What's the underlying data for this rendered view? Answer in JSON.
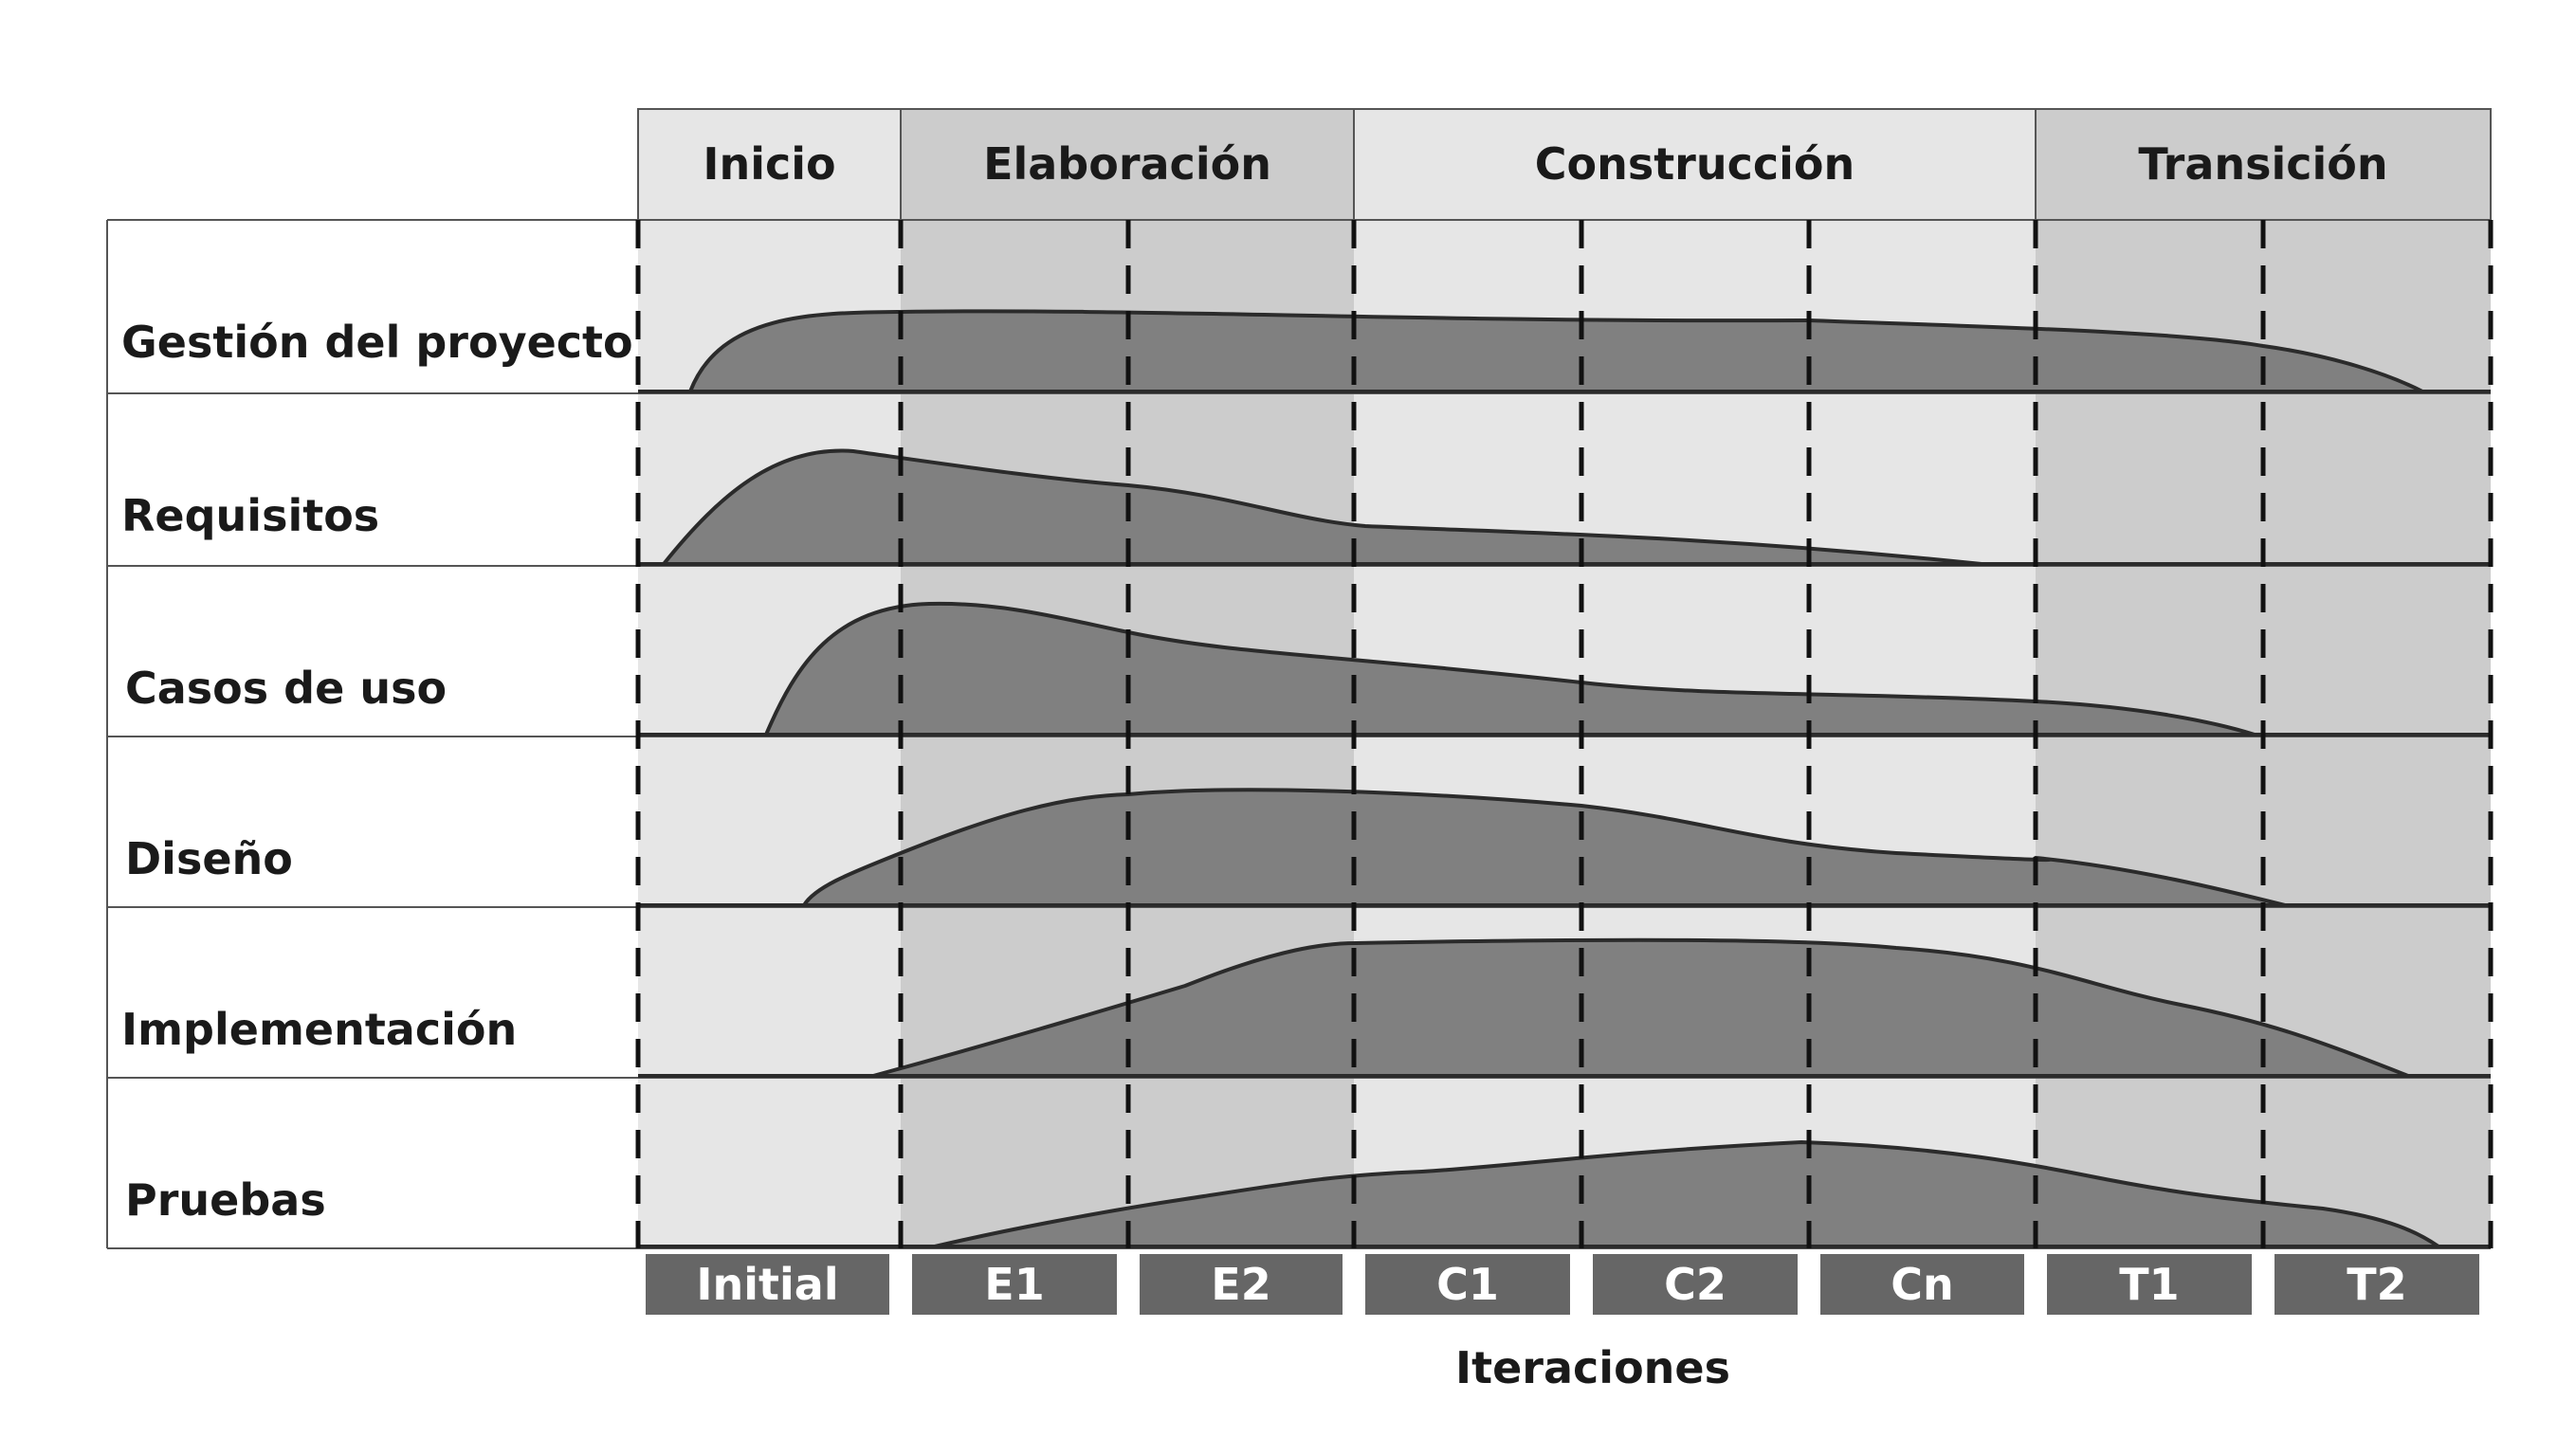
{
  "phases": [
    {
      "label": "Inicio",
      "shade": "light"
    },
    {
      "label": "Elaboración",
      "shade": "dark"
    },
    {
      "label": "Construcción",
      "shade": "light"
    },
    {
      "label": "Transición",
      "shade": "dark"
    }
  ],
  "disciplines": [
    {
      "label": "Gestión del proyecto"
    },
    {
      "label": "Requisitos"
    },
    {
      "label": "Casos de uso"
    },
    {
      "label": "Diseño"
    },
    {
      "label": "Implementación"
    },
    {
      "label": "Pruebas"
    }
  ],
  "iterations": [
    "Initial",
    "E1",
    "E2",
    "C1",
    "C2",
    "Cn",
    "T1",
    "T2"
  ],
  "iterations_axis_label": "Iteraciones",
  "colors": {
    "light_band": "#e6e6e6",
    "dark_band": "#cccccc",
    "hump_fill": "#808080",
    "hump_stroke": "#2b2b2b",
    "iteration_box": "#666666",
    "grid_line": "#555555",
    "dash_line": "#111111"
  }
}
